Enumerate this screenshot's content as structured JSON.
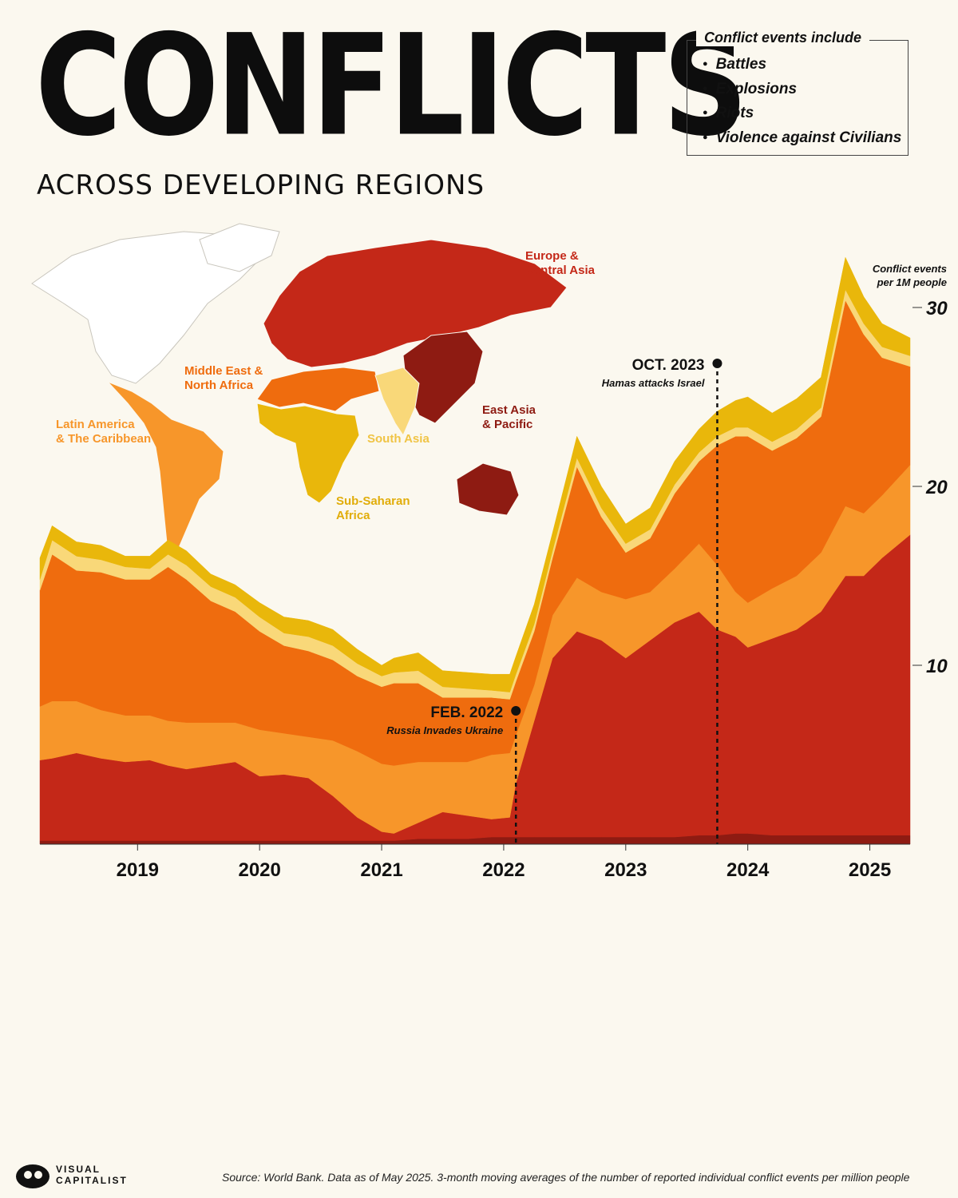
{
  "header": {
    "title": "CONFLICTS",
    "subtitle": "ACROSS DEVELOPING REGIONS"
  },
  "legend": {
    "title": "Conflict events include",
    "items": [
      "Battles",
      "Explosions",
      "Riots",
      "Violence against Civilians"
    ]
  },
  "regions": [
    {
      "name": "Europe & Central Asia",
      "label_lines": [
        "Europe &",
        "Central Asia"
      ],
      "color": "#c42818"
    },
    {
      "name": "East Asia & Pacific",
      "label_lines": [
        "East Asia",
        "& Pacific"
      ],
      "color": "#8e1b12"
    },
    {
      "name": "Middle East & North Africa",
      "label_lines": [
        "Middle East &",
        "North Africa"
      ],
      "color": "#ef6c0e"
    },
    {
      "name": "Latin America & The Caribbean",
      "label_lines": [
        "Latin America",
        "& The Caribbean"
      ],
      "color": "#f7962a"
    },
    {
      "name": "South Asia",
      "label_lines": [
        "South Asia"
      ],
      "color": "#f9d879"
    },
    {
      "name": "Sub-Saharan Africa",
      "label_lines": [
        "Sub-Saharan",
        "Africa"
      ],
      "color": "#e9b70b"
    }
  ],
  "annotations": [
    {
      "date": "FEB. 2022",
      "text": "Russia Invades Ukraine",
      "x": 2022.1
    },
    {
      "date": "OCT. 2023",
      "text": "Hamas attacks Israel",
      "x": 2023.75
    }
  ],
  "source": "Source: World Bank. Data as of May 2025. 3-month moving averages of the number of reported individual conflict events per million people",
  "logo": {
    "line1": "VISUAL",
    "line2": "CAPITALIST"
  },
  "chart_data": {
    "type": "area",
    "stacked": true,
    "ylabel": "Conflict events per 1M people",
    "ylabel_lines": [
      "Conflict events",
      "per 1M people"
    ],
    "ylim": [
      0,
      30
    ],
    "yticks": [
      10,
      20,
      30
    ],
    "xlim": [
      2018.2,
      2025.33
    ],
    "xticks": [
      "2019",
      "2020",
      "2021",
      "2022",
      "2023",
      "2024",
      "2025"
    ],
    "x": [
      2018.2,
      2018.3,
      2018.5,
      2018.7,
      2018.9,
      2019.1,
      2019.25,
      2019.4,
      2019.6,
      2019.8,
      2020.0,
      2020.2,
      2020.4,
      2020.6,
      2020.8,
      2021.0,
      2021.1,
      2021.3,
      2021.5,
      2021.7,
      2021.9,
      2022.05,
      2022.1,
      2022.25,
      2022.4,
      2022.6,
      2022.8,
      2023.0,
      2023.2,
      2023.4,
      2023.6,
      2023.75,
      2023.9,
      2024.0,
      2024.2,
      2024.4,
      2024.6,
      2024.8,
      2024.95,
      2025.1,
      2025.33
    ],
    "series": [
      {
        "name": "East Asia & Pacific",
        "color": "#8e1b12",
        "values": [
          0.2,
          0.2,
          0.2,
          0.2,
          0.2,
          0.2,
          0.2,
          0.2,
          0.2,
          0.2,
          0.2,
          0.2,
          0.2,
          0.2,
          0.2,
          0.2,
          0.2,
          0.3,
          0.3,
          0.3,
          0.4,
          0.4,
          0.4,
          0.4,
          0.4,
          0.4,
          0.4,
          0.4,
          0.4,
          0.4,
          0.5,
          0.5,
          0.6,
          0.6,
          0.5,
          0.5,
          0.5,
          0.5,
          0.5,
          0.5,
          0.5
        ]
      },
      {
        "name": "Europe & Central Asia",
        "color": "#c42818",
        "values": [
          4.5,
          4.6,
          4.9,
          4.6,
          4.4,
          4.5,
          4.2,
          4.0,
          4.2,
          4.4,
          3.6,
          3.7,
          3.5,
          2.5,
          1.3,
          0.5,
          0.4,
          0.9,
          1.5,
          1.3,
          1.0,
          1.1,
          3.0,
          6.5,
          10.0,
          11.5,
          11.0,
          10.0,
          11.0,
          12.0,
          12.5,
          11.5,
          11.0,
          10.4,
          11.0,
          11.5,
          12.5,
          14.5,
          14.5,
          15.5,
          16.8
        ]
      },
      {
        "name": "Latin America & The Caribbean",
        "color": "#f7962a",
        "values": [
          3.0,
          3.2,
          2.9,
          2.7,
          2.6,
          2.5,
          2.5,
          2.6,
          2.4,
          2.2,
          2.6,
          2.3,
          2.3,
          3.1,
          3.7,
          3.8,
          3.8,
          3.4,
          2.8,
          3.0,
          3.6,
          3.6,
          2.7,
          2.0,
          2.4,
          3.0,
          2.7,
          3.3,
          2.7,
          3.0,
          3.8,
          3.6,
          2.5,
          2.5,
          2.8,
          3.0,
          3.3,
          3.9,
          3.5,
          3.5,
          3.9
        ]
      },
      {
        "name": "Middle East & North Africa",
        "color": "#ef6c0e",
        "values": [
          6.5,
          8.2,
          7.3,
          7.7,
          7.6,
          7.6,
          8.6,
          8.0,
          6.8,
          6.2,
          5.5,
          4.9,
          4.8,
          4.5,
          4.2,
          4.3,
          4.6,
          4.4,
          3.6,
          3.6,
          3.2,
          3.0,
          3.0,
          3.0,
          3.2,
          6.2,
          4.2,
          2.6,
          3.0,
          4.2,
          4.6,
          6.7,
          8.7,
          9.3,
          7.7,
          7.7,
          7.6,
          11.5,
          10.0,
          7.7,
          5.5
        ]
      },
      {
        "name": "South Asia",
        "color": "#f9d879",
        "values": [
          0.6,
          0.8,
          0.8,
          0.7,
          0.7,
          0.6,
          0.7,
          0.8,
          0.8,
          0.8,
          0.8,
          0.7,
          0.8,
          0.8,
          0.7,
          0.6,
          0.6,
          0.7,
          0.6,
          0.5,
          0.4,
          0.4,
          0.4,
          0.4,
          0.4,
          0.5,
          0.5,
          0.5,
          0.5,
          0.5,
          0.5,
          0.5,
          0.5,
          0.5,
          0.5,
          0.5,
          0.5,
          0.6,
          0.6,
          0.6,
          0.6
        ]
      },
      {
        "name": "Sub-Saharan Africa",
        "color": "#e9b70b",
        "values": [
          1.2,
          0.8,
          0.8,
          0.8,
          0.6,
          0.7,
          0.8,
          0.8,
          0.7,
          0.7,
          0.8,
          0.9,
          0.9,
          0.9,
          0.8,
          0.6,
          0.8,
          1.0,
          0.9,
          0.9,
          0.9,
          1.0,
          1.0,
          1.1,
          1.0,
          1.2,
          1.2,
          1.1,
          1.2,
          1.3,
          1.3,
          1.4,
          1.5,
          1.7,
          1.6,
          1.7,
          1.7,
          1.8,
          1.5,
          1.3,
          1.0
        ]
      }
    ]
  }
}
